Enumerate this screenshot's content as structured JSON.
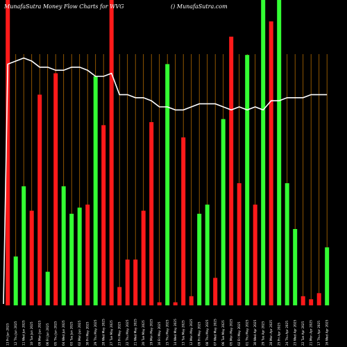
{
  "header": {
    "left": "MunafaSutra  Money Flow  Charts for WVG",
    "right": "() MunafaSutra.com"
  },
  "colors": {
    "background": "#000000",
    "grid": "#b36b00",
    "up": "#33ff33",
    "down": "#ff1a1a",
    "line": "#ffffff",
    "text": "#ffffff"
  },
  "chart_data": {
    "type": "bar",
    "title": "",
    "xlabel": "",
    "ylabel": "",
    "ylim": [
      0,
      100
    ],
    "grid": true,
    "categories": [
      "13 Fri Jun 2025",
      "12 Thu Jun 2025",
      "11 Wed Jun 2025",
      "10 Tue Jun 2025",
      "09 Mon Jun 2025",
      "06 Fri Jun 2025",
      "05 Thu Jun 2025",
      "04 Wed Jun 2025",
      "03 Tue Jun 2025",
      "02 Mon Jun 2025",
      "30 Fri May 2025",
      "29 Thu May 2025",
      "28 Wed May 2025",
      "27 Tue May 2025",
      "23 Fri May 2025",
      "22 Thu May 2025",
      "21 Wed May 2025",
      "20 Tue May 2025",
      "19 Mon May 2025",
      "16 Fri May 2025",
      "15 Thu May 2025",
      "14 Wed May 2025",
      "13 Tue May 2025",
      "12 Mon May 2025",
      "09 Fri May 2025",
      "08 Thu May 2025",
      "07 Wed May 2025",
      "06 Tue May 2025",
      "05 Mon May 2025",
      "02 Fri May 2025",
      "01 Thu May 2025",
      "30 Wed Apr 2025",
      "29 Tue Apr 2025",
      "28 Mon Apr 2025",
      "25 Fri Apr 2025",
      "24 Thu Apr 2025",
      "23 Wed Apr 2025",
      "22 Tue Apr 2025",
      "21 Mon Apr 2025",
      "17 Thu Apr 2025",
      "16 Wed Apr 2025"
    ],
    "series": [
      {
        "values": [
          100,
          16,
          39,
          31,
          69,
          11,
          76,
          39,
          30,
          32,
          33,
          75,
          59,
          100,
          6,
          15,
          15,
          31,
          60,
          1,
          79,
          1,
          55,
          3,
          30,
          33,
          9,
          61,
          88,
          40,
          82,
          33,
          100,
          93,
          100,
          40,
          25,
          3,
          2,
          4,
          19
        ],
        "direction": [
          "down",
          "up",
          "up",
          "down",
          "down",
          "up",
          "down",
          "up",
          "up",
          "up",
          "down",
          "up",
          "down",
          "down",
          "down",
          "down",
          "down",
          "down",
          "down",
          "down",
          "up",
          "down",
          "down",
          "down",
          "up",
          "up",
          "down",
          "up",
          "down",
          "down",
          "up",
          "down",
          "up",
          "down",
          "up",
          "up",
          "up",
          "down",
          "down",
          "down",
          "up"
        ]
      },
      {
        "values": [
          79,
          80,
          81,
          80,
          78,
          78,
          77,
          77,
          78,
          78,
          77,
          75,
          75,
          76,
          69,
          69,
          68,
          68,
          67,
          65,
          65,
          64,
          64,
          65,
          66,
          66,
          66,
          65,
          64,
          65,
          64,
          65,
          64,
          67,
          67,
          68,
          68,
          68,
          69,
          69,
          69
        ]
      }
    ]
  }
}
